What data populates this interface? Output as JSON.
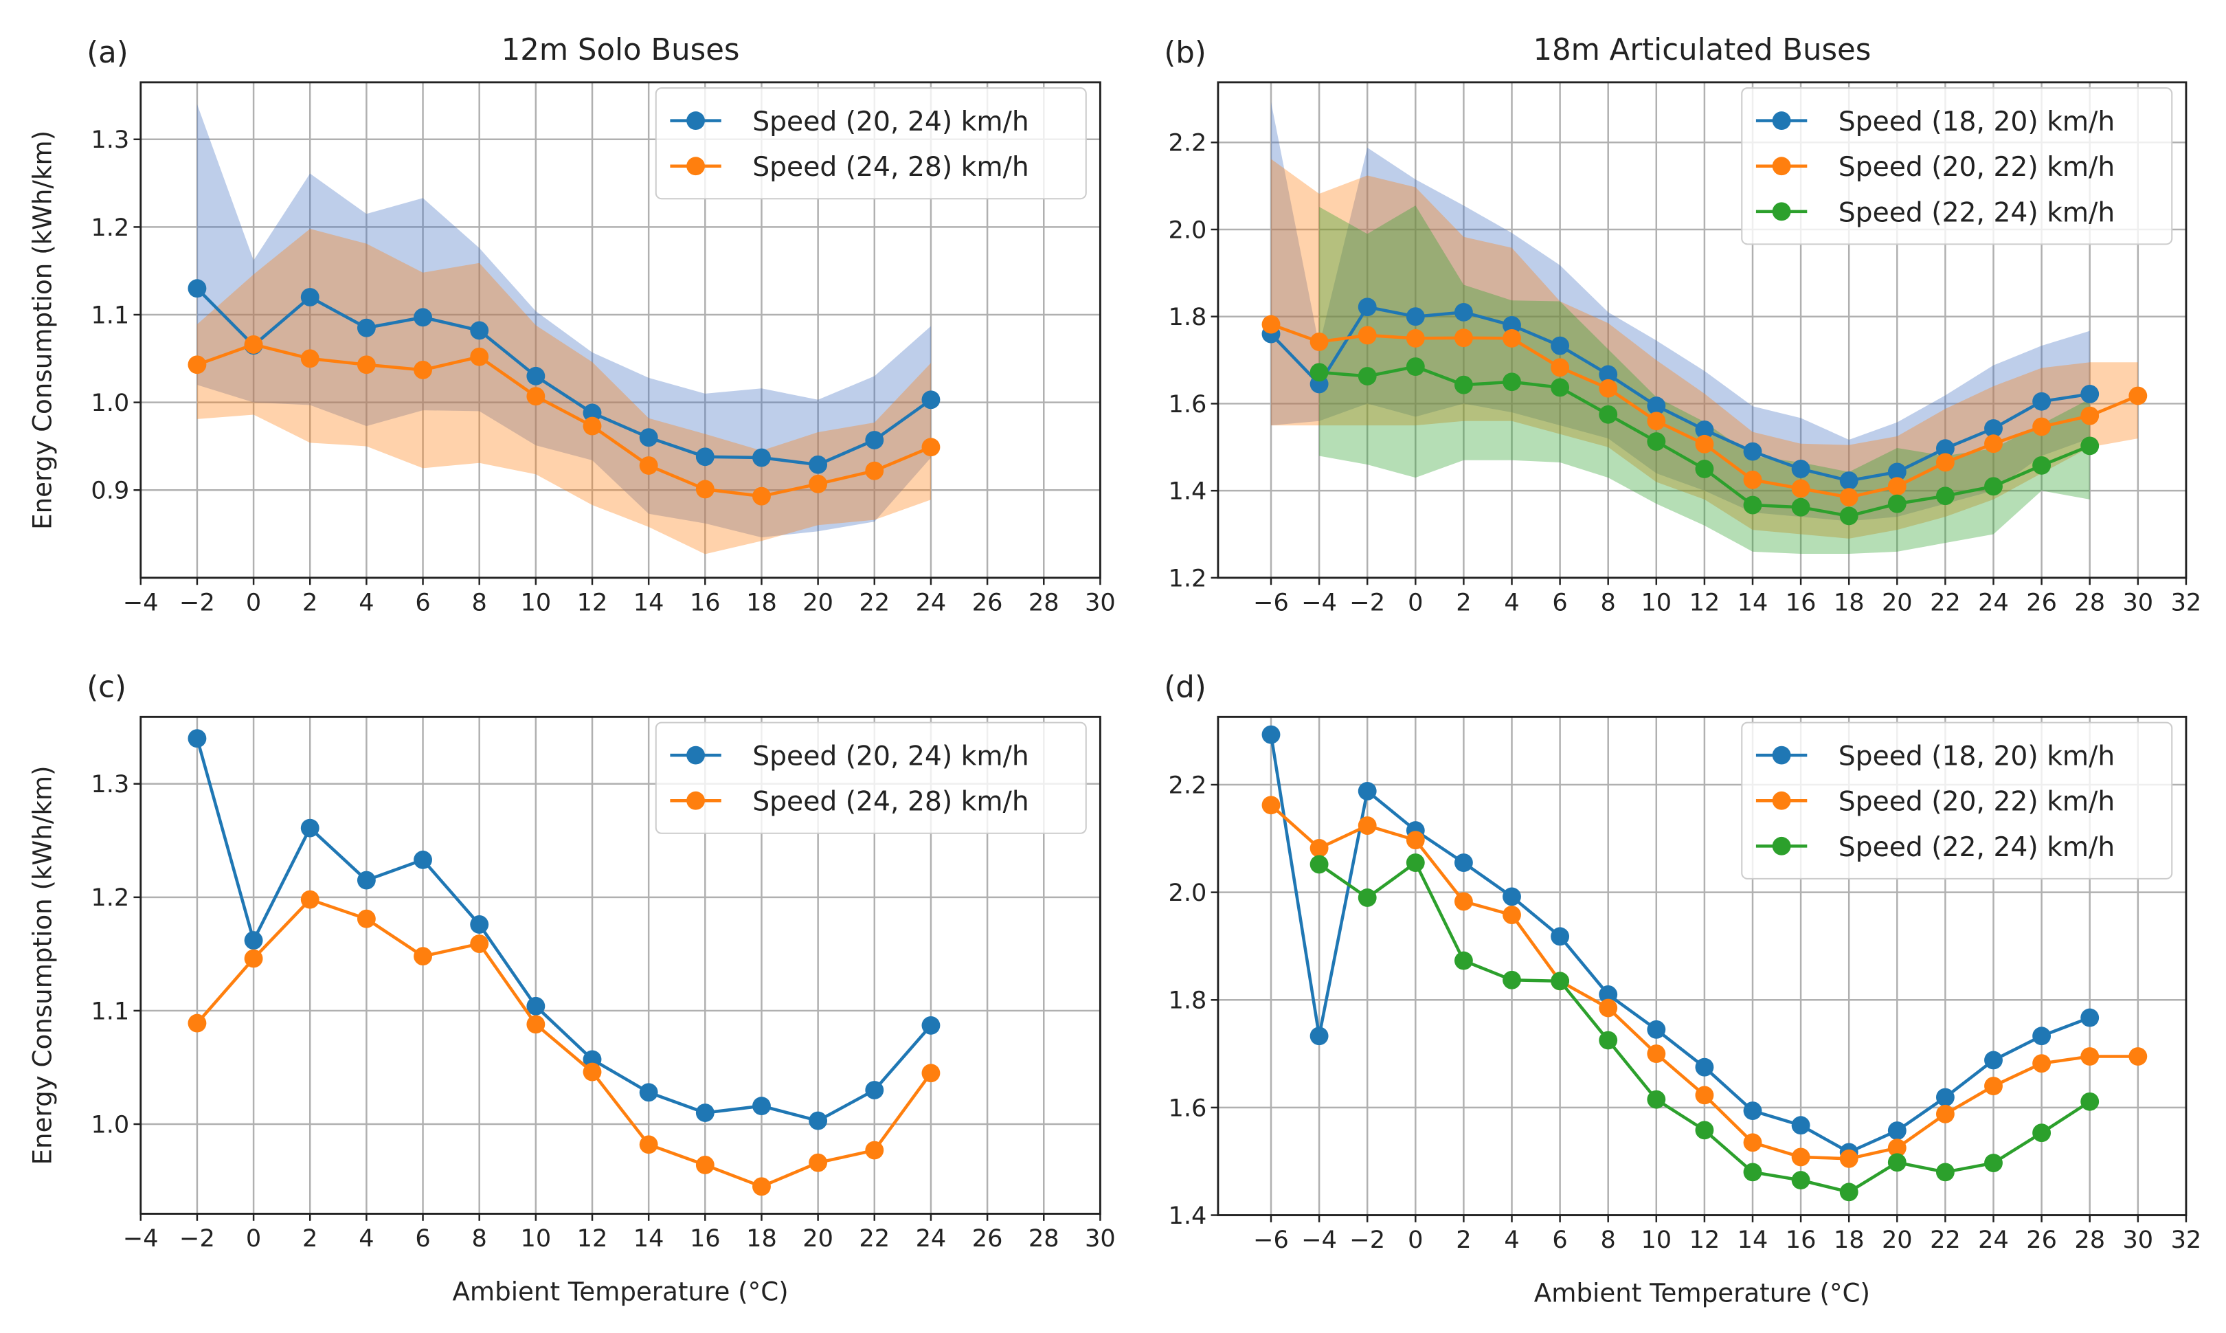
{
  "xlabel": "Ambient Temperature (°C)",
  "ylabel": "Energy Consumption (kWh/km)",
  "chart_data": [
    {
      "panel": "(a)",
      "type": "line",
      "title": "12m Solo Buses",
      "xlim": [
        -4,
        30
      ],
      "ylim": [
        0.8,
        1.365
      ],
      "xticks": [
        -4,
        -2,
        0,
        2,
        4,
        6,
        8,
        10,
        12,
        14,
        16,
        18,
        20,
        22,
        24,
        26,
        28,
        30
      ],
      "yticks": [
        0.9,
        1.0,
        1.1,
        1.2,
        1.3
      ],
      "grid": true,
      "legend": "top-right",
      "series": [
        {
          "name": "Speed (20, 24) km/h",
          "color": "#1f77b4",
          "band": "#4472c4",
          "x": [
            -2,
            0,
            2,
            4,
            6,
            8,
            10,
            12,
            14,
            16,
            18,
            20,
            22,
            24
          ],
          "y": [
            1.13,
            1.065,
            1.12,
            1.085,
            1.097,
            1.082,
            1.03,
            0.988,
            0.96,
            0.938,
            0.937,
            0.929,
            0.957,
            1.003
          ],
          "upper": [
            1.34,
            1.162,
            1.261,
            1.215,
            1.233,
            1.176,
            1.104,
            1.057,
            1.028,
            1.01,
            1.016,
            1.003,
            1.03,
            1.087
          ],
          "lower": [
            1.02,
            1.0,
            0.997,
            0.973,
            0.991,
            0.99,
            0.951,
            0.934,
            0.873,
            0.862,
            0.846,
            0.853,
            0.864,
            0.937
          ]
        },
        {
          "name": "Speed (24, 28) km/h",
          "color": "#ff7f0e",
          "band": "#ff7f0e",
          "x": [
            -2,
            0,
            2,
            4,
            6,
            8,
            10,
            12,
            14,
            16,
            18,
            20,
            22,
            24
          ],
          "y": [
            1.043,
            1.066,
            1.05,
            1.043,
            1.037,
            1.052,
            1.007,
            0.973,
            0.928,
            0.901,
            0.893,
            0.907,
            0.922,
            0.949
          ],
          "upper": [
            1.089,
            1.146,
            1.198,
            1.181,
            1.148,
            1.159,
            1.088,
            1.046,
            0.982,
            0.964,
            0.945,
            0.966,
            0.977,
            1.045
          ],
          "lower": [
            0.981,
            0.986,
            0.954,
            0.95,
            0.925,
            0.931,
            0.918,
            0.883,
            0.858,
            0.827,
            0.842,
            0.86,
            0.866,
            0.889
          ]
        }
      ]
    },
    {
      "panel": "(b)",
      "type": "line",
      "title": "18m Articulated Buses",
      "xlim": [
        -8.2,
        32
      ],
      "ylim": [
        1.2,
        2.338
      ],
      "xticks": [
        -6,
        -4,
        -2,
        0,
        2,
        4,
        6,
        8,
        10,
        12,
        14,
        16,
        18,
        20,
        22,
        24,
        26,
        28,
        30,
        32
      ],
      "yticks": [
        1.2,
        1.4,
        1.6,
        1.8,
        2.0,
        2.2
      ],
      "grid": true,
      "legend": "top-right",
      "series": [
        {
          "name": "Speed (18, 20) km/h",
          "color": "#1f77b4",
          "band": "#4472c4",
          "x": [
            -6,
            -4,
            -2,
            0,
            2,
            4,
            6,
            8,
            10,
            12,
            14,
            16,
            18,
            20,
            22,
            24,
            26,
            28
          ],
          "y": [
            1.76,
            1.645,
            1.822,
            1.8,
            1.81,
            1.78,
            1.733,
            1.667,
            1.595,
            1.54,
            1.49,
            1.45,
            1.423,
            1.443,
            1.497,
            1.543,
            1.605,
            1.622
          ],
          "upper": [
            2.293,
            1.733,
            2.188,
            2.115,
            2.055,
            1.992,
            1.918,
            1.81,
            1.745,
            1.675,
            1.594,
            1.567,
            1.517,
            1.557,
            1.619,
            1.688,
            1.733,
            1.767
          ],
          "lower": [
            1.55,
            1.56,
            1.6,
            1.57,
            1.6,
            1.58,
            1.55,
            1.52,
            1.44,
            1.4,
            1.35,
            1.34,
            1.33,
            1.34,
            1.37,
            1.4,
            1.48,
            1.52
          ]
        },
        {
          "name": "Speed (20, 22) km/h",
          "color": "#ff7f0e",
          "band": "#ff7f0e",
          "x": [
            -6,
            -4,
            -2,
            0,
            2,
            4,
            6,
            8,
            10,
            12,
            14,
            16,
            18,
            20,
            22,
            24,
            26,
            28,
            30
          ],
          "y": [
            1.782,
            1.742,
            1.757,
            1.75,
            1.751,
            1.75,
            1.683,
            1.635,
            1.56,
            1.507,
            1.425,
            1.405,
            1.385,
            1.41,
            1.465,
            1.508,
            1.547,
            1.572,
            1.618
          ],
          "upper": [
            2.162,
            2.082,
            2.124,
            2.097,
            1.983,
            1.958,
            1.835,
            1.785,
            1.7,
            1.623,
            1.535,
            1.508,
            1.505,
            1.525,
            1.588,
            1.64,
            1.682,
            1.695,
            1.695
          ],
          "lower": [
            1.55,
            1.55,
            1.55,
            1.55,
            1.56,
            1.56,
            1.53,
            1.5,
            1.42,
            1.38,
            1.31,
            1.3,
            1.29,
            1.31,
            1.34,
            1.38,
            1.44,
            1.5,
            1.52
          ]
        },
        {
          "name": "Speed (22, 24) km/h",
          "color": "#2ca02c",
          "band": "#2ca02c",
          "x": [
            -4,
            -2,
            0,
            2,
            4,
            6,
            8,
            10,
            12,
            14,
            16,
            18,
            20,
            22,
            24,
            26,
            28
          ],
          "y": [
            1.672,
            1.663,
            1.685,
            1.643,
            1.65,
            1.637,
            1.575,
            1.513,
            1.45,
            1.367,
            1.362,
            1.342,
            1.37,
            1.388,
            1.41,
            1.458,
            1.503
          ],
          "upper": [
            2.052,
            1.99,
            2.055,
            1.873,
            1.837,
            1.835,
            1.725,
            1.615,
            1.558,
            1.48,
            1.465,
            1.443,
            1.498,
            1.48,
            1.497,
            1.553,
            1.611
          ],
          "lower": [
            1.48,
            1.46,
            1.43,
            1.47,
            1.47,
            1.465,
            1.43,
            1.37,
            1.32,
            1.26,
            1.255,
            1.255,
            1.26,
            1.28,
            1.3,
            1.4,
            1.38
          ]
        }
      ]
    },
    {
      "panel": "(c)",
      "type": "line",
      "title": "",
      "xlim": [
        -4,
        30
      ],
      "ylim": [
        0.921,
        1.359
      ],
      "xticks": [
        -4,
        -2,
        0,
        2,
        4,
        6,
        8,
        10,
        12,
        14,
        16,
        18,
        20,
        22,
        24,
        26,
        28,
        30
      ],
      "yticks": [
        1.0,
        1.1,
        1.2,
        1.3
      ],
      "grid": true,
      "legend": "top-right",
      "series": [
        {
          "name": "Speed (20, 24) km/h",
          "color": "#1f77b4",
          "x": [
            -2,
            0,
            2,
            4,
            6,
            8,
            10,
            12,
            14,
            16,
            18,
            20,
            22,
            24
          ],
          "y": [
            1.34,
            1.162,
            1.261,
            1.215,
            1.233,
            1.176,
            1.104,
            1.057,
            1.028,
            1.01,
            1.016,
            1.003,
            1.03,
            1.087
          ]
        },
        {
          "name": "Speed (24, 28) km/h",
          "color": "#ff7f0e",
          "x": [
            -2,
            0,
            2,
            4,
            6,
            8,
            10,
            12,
            14,
            16,
            18,
            20,
            22,
            24
          ],
          "y": [
            1.089,
            1.146,
            1.198,
            1.181,
            1.148,
            1.159,
            1.088,
            1.046,
            0.982,
            0.964,
            0.945,
            0.966,
            0.977,
            1.045
          ]
        }
      ]
    },
    {
      "panel": "(d)",
      "type": "line",
      "title": "",
      "xlim": [
        -8.2,
        32
      ],
      "ylim": [
        1.4,
        2.326
      ],
      "xticks": [
        -6,
        -4,
        -2,
        0,
        2,
        4,
        6,
        8,
        10,
        12,
        14,
        16,
        18,
        20,
        22,
        24,
        26,
        28,
        30,
        32
      ],
      "yticks": [
        1.4,
        1.6,
        1.8,
        2.0,
        2.2
      ],
      "grid": true,
      "legend": "top-right",
      "series": [
        {
          "name": "Speed (18, 20) km/h",
          "color": "#1f77b4",
          "x": [
            -6,
            -4,
            -2,
            0,
            2,
            4,
            6,
            8,
            10,
            12,
            14,
            16,
            18,
            20,
            22,
            24,
            26,
            28
          ],
          "y": [
            2.293,
            1.733,
            2.188,
            2.115,
            2.055,
            1.992,
            1.918,
            1.81,
            1.745,
            1.675,
            1.594,
            1.567,
            1.517,
            1.557,
            1.619,
            1.688,
            1.733,
            1.767
          ]
        },
        {
          "name": "Speed (20, 22) km/h",
          "color": "#ff7f0e",
          "x": [
            -6,
            -4,
            -2,
            0,
            2,
            4,
            6,
            8,
            10,
            12,
            14,
            16,
            18,
            20,
            22,
            24,
            26,
            28,
            30
          ],
          "y": [
            2.162,
            2.082,
            2.124,
            2.097,
            1.983,
            1.958,
            1.835,
            1.785,
            1.7,
            1.623,
            1.535,
            1.508,
            1.505,
            1.525,
            1.588,
            1.64,
            1.682,
            1.695,
            1.695
          ]
        },
        {
          "name": "Speed (22, 24) km/h",
          "color": "#2ca02c",
          "x": [
            -4,
            -2,
            0,
            2,
            4,
            6,
            8,
            10,
            12,
            14,
            16,
            18,
            20,
            22,
            24,
            26,
            28
          ],
          "y": [
            2.052,
            1.99,
            2.055,
            1.873,
            1.837,
            1.835,
            1.725,
            1.615,
            1.558,
            1.48,
            1.465,
            1.443,
            1.498,
            1.48,
            1.497,
            1.553,
            1.611
          ]
        }
      ]
    }
  ]
}
